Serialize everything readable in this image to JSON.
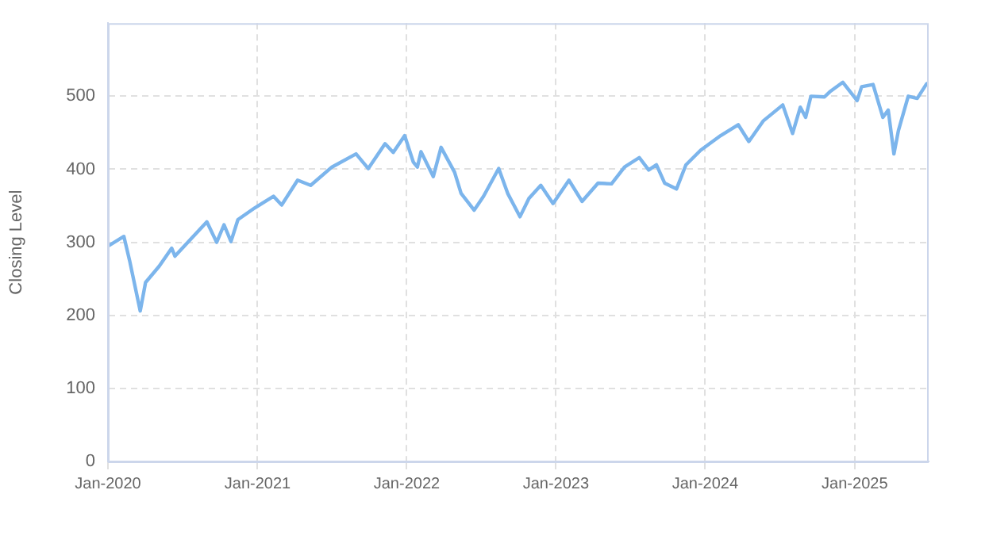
{
  "chart_data": {
    "type": "line",
    "ylabel": "Closing Level",
    "x": [
      "2020-01-02",
      "2020-02-09",
      "2020-02-23",
      "2020-03-20",
      "2020-04-02",
      "2020-05-05",
      "2020-06-05",
      "2020-06-13",
      "2020-08-30",
      "2020-09-23",
      "2020-10-11",
      "2020-10-28",
      "2020-11-14",
      "2020-12-25",
      "2021-02-09",
      "2021-03-01",
      "2021-04-09",
      "2021-05-11",
      "2021-07-02",
      "2021-08-30",
      "2021-09-29",
      "2021-11-09",
      "2021-11-29",
      "2021-12-27",
      "2022-01-17",
      "2022-01-27",
      "2022-02-05",
      "2022-03-07",
      "2022-03-26",
      "2022-04-28",
      "2022-05-14",
      "2022-06-15",
      "2022-07-08",
      "2022-08-14",
      "2022-09-05",
      "2022-10-05",
      "2022-10-27",
      "2022-11-25",
      "2022-12-25",
      "2023-02-02",
      "2023-03-06",
      "2023-04-14",
      "2023-05-17",
      "2023-06-18",
      "2023-07-24",
      "2023-08-16",
      "2023-09-04",
      "2023-09-24",
      "2023-10-23",
      "2023-11-15",
      "2023-12-21",
      "2024-02-08",
      "2024-03-22",
      "2024-04-17",
      "2024-05-22",
      "2024-07-09",
      "2024-08-02",
      "2024-08-21",
      "2024-09-03",
      "2024-09-16",
      "2024-10-19",
      "2024-11-01",
      "2024-12-03",
      "2025-01-07",
      "2025-01-18",
      "2025-02-15",
      "2025-03-11",
      "2025-03-24",
      "2025-04-07",
      "2025-04-18",
      "2025-05-12",
      "2025-06-03",
      "2025-06-26",
      "2025-06-30"
    ],
    "series": [
      {
        "color": "#7cb5ec",
        "values": [
          295,
          308,
          275,
          206,
          245,
          267,
          292,
          281,
          328,
          300,
          324,
          301,
          331,
          347,
          363,
          351,
          385,
          378,
          403,
          421,
          401,
          435,
          423,
          446,
          410,
          403,
          424,
          390,
          430,
          396,
          367,
          344,
          363,
          401,
          367,
          335,
          360,
          378,
          353,
          385,
          356,
          381,
          380,
          403,
          416,
          399,
          406,
          381,
          373,
          406,
          426,
          446,
          461,
          438,
          466,
          488,
          449,
          485,
          471,
          500,
          499,
          506,
          519,
          494,
          513,
          516,
          471,
          481,
          421,
          453,
          500,
          497,
          517,
          518
        ]
      }
    ],
    "xlim": [
      "2020-01-01",
      "2025-07-01"
    ],
    "xticks": [
      {
        "value": "2020-01-01",
        "label": "Jan-2020"
      },
      {
        "value": "2021-01-01",
        "label": "Jan-2021"
      },
      {
        "value": "2022-01-01",
        "label": "Jan-2022"
      },
      {
        "value": "2023-01-01",
        "label": "Jan-2023"
      },
      {
        "value": "2024-01-01",
        "label": "Jan-2024"
      },
      {
        "value": "2025-01-01",
        "label": "Jan-2025"
      }
    ],
    "ylim": [
      0,
      600
    ],
    "yticks": [
      0,
      100,
      200,
      300,
      400,
      500
    ],
    "grid": true,
    "legend": false,
    "marker": "none",
    "line_style": "solid"
  }
}
